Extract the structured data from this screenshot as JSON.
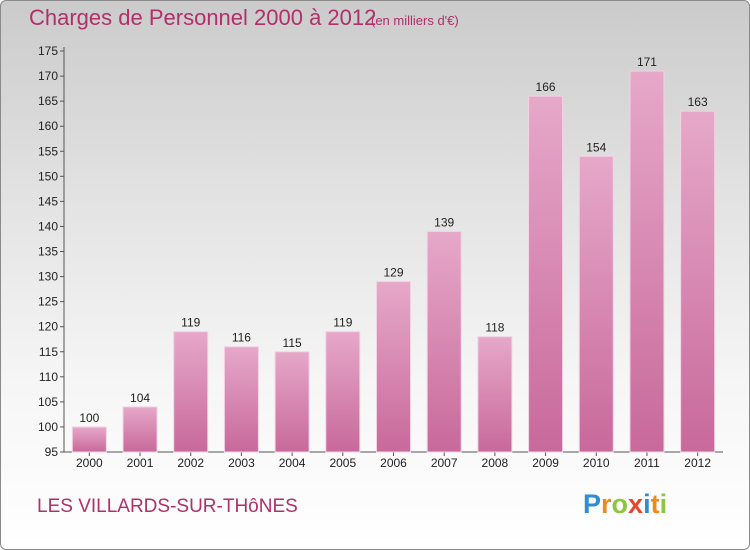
{
  "header": {
    "title": "Charges de Personnel 2000 à 2012",
    "subtitle": "(en milliers d'€)"
  },
  "footer": {
    "commune": "LES VILLARDS-SUR-THôNES",
    "logo_text": "Proxiti",
    "logo_letters": [
      {
        "char": "P",
        "color": "#2a8fd6"
      },
      {
        "char": "r",
        "color": "#f08a1e"
      },
      {
        "char": "o",
        "color": "#8cc63e"
      },
      {
        "char": "x",
        "color": "#e8452c"
      },
      {
        "char": "i",
        "color": "#2a8fd6"
      },
      {
        "char": "t",
        "color": "#f08a1e"
      },
      {
        "char": "i",
        "color": "#8cc63e"
      }
    ]
  },
  "chart_data": {
    "type": "bar",
    "title": "Charges de Personnel 2000 à 2012",
    "subtitle": "(en milliers d'€)",
    "xlabel": "",
    "ylabel": "",
    "categories": [
      "2000",
      "2001",
      "2002",
      "2003",
      "2004",
      "2005",
      "2006",
      "2007",
      "2008",
      "2009",
      "2010",
      "2011",
      "2012"
    ],
    "values": [
      100,
      104,
      119,
      116,
      115,
      119,
      129,
      139,
      118,
      166,
      154,
      171,
      163
    ],
    "data_labels": [
      "100",
      "104",
      "119",
      "116",
      "115",
      "119",
      "129",
      "139",
      "118",
      "166",
      "154",
      "171",
      "163"
    ],
    "ylim": [
      95,
      175
    ],
    "yticks": [
      "95",
      "100",
      "105",
      "110",
      "115",
      "120",
      "125",
      "130",
      "135",
      "140",
      "145",
      "150",
      "155",
      "160",
      "165",
      "170",
      "175"
    ],
    "grid": false,
    "legend": "none",
    "bar_color": "#c8699b",
    "bar_color_light": "#e6a8c9",
    "axis_color": "#555555"
  }
}
